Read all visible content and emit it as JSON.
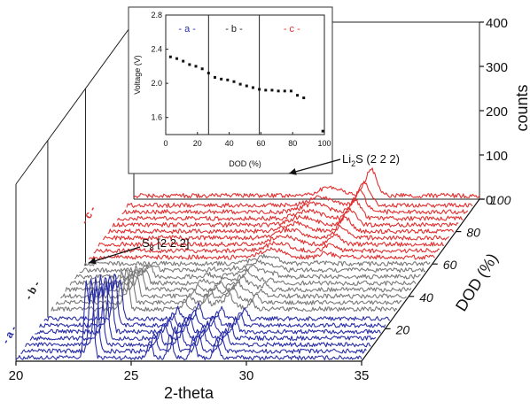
{
  "chart_data": {
    "type": "line",
    "title": "",
    "main": {
      "x_label": "2-theta",
      "x_range": [
        20,
        35
      ],
      "x_ticks": [
        "20",
        "25",
        "30",
        "35"
      ],
      "y_label": "counts",
      "y_range": [
        0,
        400
      ],
      "y_ticks": [
        "0",
        "100",
        "200",
        "300",
        "400"
      ],
      "z_label": "DOD (%)",
      "z_range": [
        0,
        100
      ],
      "z_ticks": [
        "20",
        "40",
        "60",
        "80",
        "100"
      ],
      "region_labels": [
        {
          "text": "- a -",
          "color": "#2b2fa6"
        },
        {
          "text": "- b -",
          "color": "#222222"
        },
        {
          "text": "- c -",
          "color": "#e03030"
        }
      ],
      "annotations": [
        {
          "label": "Li",
          "sub": "2",
          "rest": "S (2 2 2)",
          "x": 30.3
        },
        {
          "label": "S",
          "sub": "8",
          "rest": " [2 2 2]",
          "x": 23.2
        }
      ],
      "series_groups": [
        {
          "region": "a",
          "color": "#2b2fa6",
          "dod": [
            0,
            4,
            8,
            12,
            16,
            20,
            24
          ]
        },
        {
          "region": "b",
          "color": "#7a7a7a",
          "dod": [
            30,
            34,
            38,
            42,
            46,
            50,
            54,
            58
          ]
        },
        {
          "region": "c",
          "color": "#e03030",
          "dod": [
            62,
            66,
            70,
            74,
            78,
            82,
            86,
            90,
            94,
            100
          ]
        }
      ],
      "peaks_2theta": {
        "s8": [
          23.05,
          23.3,
          25.8,
          26.7,
          27.7,
          28.7
        ],
        "li2s": 30.3
      }
    },
    "inset": {
      "type": "scatter",
      "x_label": "DOD (%)",
      "y_label": "Voltage (V)",
      "x_range": [
        0,
        100
      ],
      "y_range": [
        1.4,
        2.8
      ],
      "x_ticks": [
        "0",
        "20",
        "40",
        "60",
        "80",
        "100"
      ],
      "y_ticks": [
        "1.6",
        "2.0",
        "2.4",
        "2.8"
      ],
      "region_boundaries": [
        27,
        59
      ],
      "region_labels": [
        {
          "text": "- a -",
          "color": "#2b2fa6"
        },
        {
          "text": "- b -",
          "color": "#222222"
        },
        {
          "text": "- c -",
          "color": "#e03030"
        }
      ],
      "points": [
        [
          3,
          2.31
        ],
        [
          7,
          2.29
        ],
        [
          11,
          2.26
        ],
        [
          15,
          2.22
        ],
        [
          19,
          2.2
        ],
        [
          23,
          2.17
        ],
        [
          27,
          2.12
        ],
        [
          31,
          2.07
        ],
        [
          35,
          2.05
        ],
        [
          39,
          2.04
        ],
        [
          43,
          2.02
        ],
        [
          47,
          1.99
        ],
        [
          51,
          1.97
        ],
        [
          55,
          1.95
        ],
        [
          59,
          1.93
        ],
        [
          63,
          1.92
        ],
        [
          67,
          1.92
        ],
        [
          71,
          1.91
        ],
        [
          75,
          1.91
        ],
        [
          79,
          1.91
        ],
        [
          83,
          1.86
        ],
        [
          87,
          1.83
        ],
        [
          99,
          1.44
        ]
      ]
    }
  }
}
